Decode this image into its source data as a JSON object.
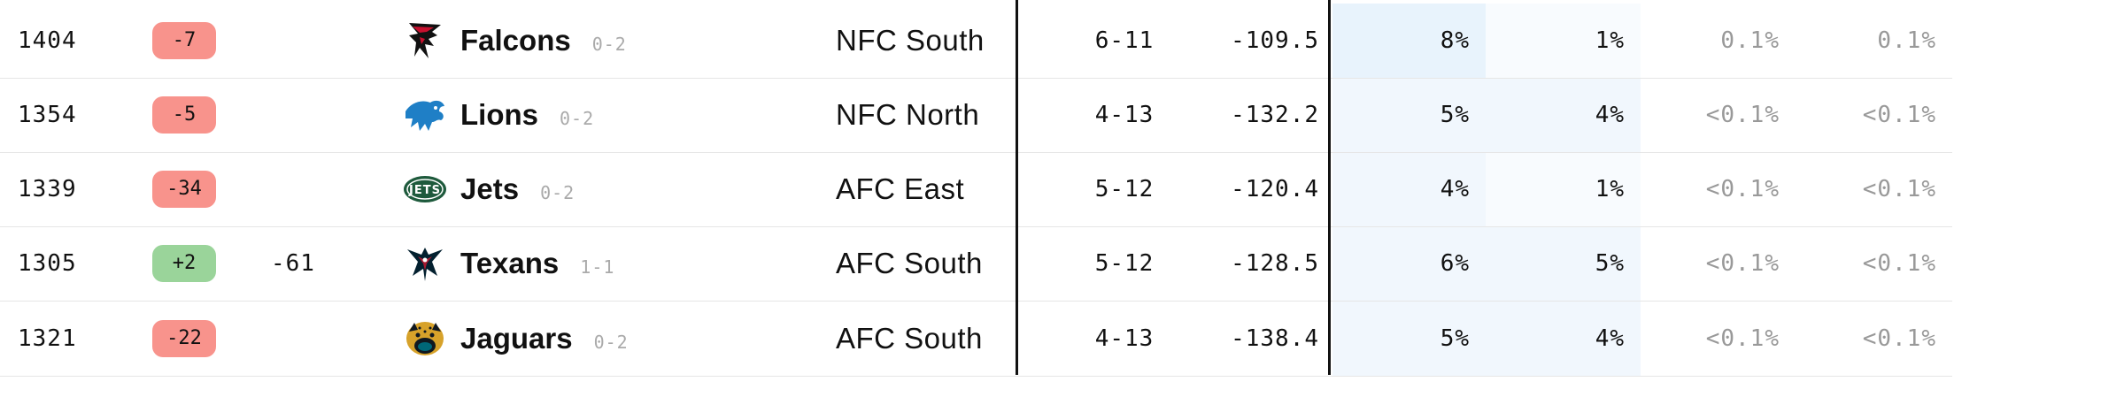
{
  "colors": {
    "negative_badge": "#f8938c",
    "positive_badge": "#9ad49a",
    "heat_high": "#e8f3fc",
    "heat_mid": "#f1f7fd",
    "heat_low": "#f8fbfe"
  },
  "rows": [
    {
      "elo": "1404",
      "change": "-7",
      "change_sign": "neg",
      "prev": "",
      "logo": "falcons-logo-icon",
      "team": "Falcons",
      "record": "0-2",
      "division": "NFC South",
      "proj": "6-11",
      "pd": "-109.5",
      "p1": "8%",
      "p2": "1%",
      "p3": "0.1%",
      "p4": "0.1%",
      "h1": "heat_high",
      "h2": "heat_low"
    },
    {
      "elo": "1354",
      "change": "-5",
      "change_sign": "neg",
      "prev": "",
      "logo": "lions-logo-icon",
      "team": "Lions",
      "record": "0-2",
      "division": "NFC North",
      "proj": "4-13",
      "pd": "-132.2",
      "p1": "5%",
      "p2": "4%",
      "p3": "<0.1%",
      "p4": "<0.1%",
      "h1": "heat_mid",
      "h2": "heat_mid"
    },
    {
      "elo": "1339",
      "change": "-34",
      "change_sign": "neg",
      "prev": "",
      "logo": "jets-logo-icon",
      "team": "Jets",
      "record": "0-2",
      "division": "AFC East",
      "proj": "5-12",
      "pd": "-120.4",
      "p1": "4%",
      "p2": "1%",
      "p3": "<0.1%",
      "p4": "<0.1%",
      "h1": "heat_mid",
      "h2": "heat_low"
    },
    {
      "elo": "1305",
      "change": "+2",
      "change_sign": "pos",
      "prev": "-61",
      "logo": "texans-logo-icon",
      "team": "Texans",
      "record": "1-1",
      "division": "AFC South",
      "proj": "5-12",
      "pd": "-128.5",
      "p1": "6%",
      "p2": "5%",
      "p3": "<0.1%",
      "p4": "<0.1%",
      "h1": "heat_mid",
      "h2": "heat_mid"
    },
    {
      "elo": "1321",
      "change": "-22",
      "change_sign": "neg",
      "prev": "",
      "logo": "jaguars-logo-icon",
      "team": "Jaguars",
      "record": "0-2",
      "division": "AFC South",
      "proj": "4-13",
      "pd": "-138.4",
      "p1": "5%",
      "p2": "4%",
      "p3": "<0.1%",
      "p4": "<0.1%",
      "h1": "heat_mid",
      "h2": "heat_mid"
    }
  ]
}
